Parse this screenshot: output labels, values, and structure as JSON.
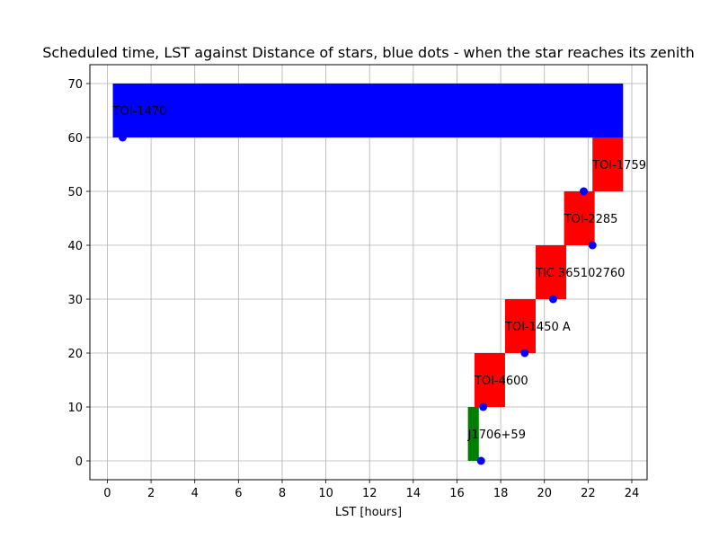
{
  "chart_data": {
    "type": "bar",
    "title": "Scheduled time, LST against Distance of stars, blue dots - when the star reaches its zenith",
    "xlabel": "LST [hours]",
    "ylabel": "",
    "xlim": [
      -0.8,
      24.7
    ],
    "ylim": [
      -3.5,
      73.5
    ],
    "grid": true,
    "xticks": [
      "0",
      "2",
      "4",
      "6",
      "8",
      "10",
      "12",
      "14",
      "16",
      "18",
      "20",
      "22",
      "24"
    ],
    "yticks": [
      "0",
      "10",
      "20",
      "30",
      "40",
      "50",
      "60",
      "70"
    ],
    "bars": [
      {
        "label": "J1706+59",
        "start": 16.5,
        "end": 17.0,
        "y0": 0,
        "y1": 10,
        "color": "#008000"
      },
      {
        "label": "TOI-4600",
        "start": 16.8,
        "end": 18.2,
        "y0": 10,
        "y1": 20,
        "color": "#ff0000"
      },
      {
        "label": "TOI-1450 A",
        "start": 18.2,
        "end": 19.6,
        "y0": 20,
        "y1": 30,
        "color": "#ff0000"
      },
      {
        "label": "TIC 365102760",
        "start": 19.6,
        "end": 21.0,
        "y0": 30,
        "y1": 40,
        "color": "#ff0000"
      },
      {
        "label": "TOI-2285",
        "start": 20.9,
        "end": 22.3,
        "y0": 40,
        "y1": 50,
        "color": "#ff0000"
      },
      {
        "label": "TOI-1759",
        "start": 22.2,
        "end": 23.6,
        "y0": 50,
        "y1": 60,
        "color": "#ff0000"
      },
      {
        "label": "TOI-1470",
        "start": 0.25,
        "end": 23.6,
        "y0": 60,
        "y1": 70,
        "color": "#0000ff"
      }
    ],
    "zenith_points": [
      {
        "x": 17.1,
        "y": 0
      },
      {
        "x": 17.2,
        "y": 10
      },
      {
        "x": 19.1,
        "y": 20
      },
      {
        "x": 20.4,
        "y": 30
      },
      {
        "x": 22.2,
        "y": 40
      },
      {
        "x": 21.8,
        "y": 50
      },
      {
        "x": 0.7,
        "y": 60
      }
    ],
    "point_color": "#0000ff"
  }
}
